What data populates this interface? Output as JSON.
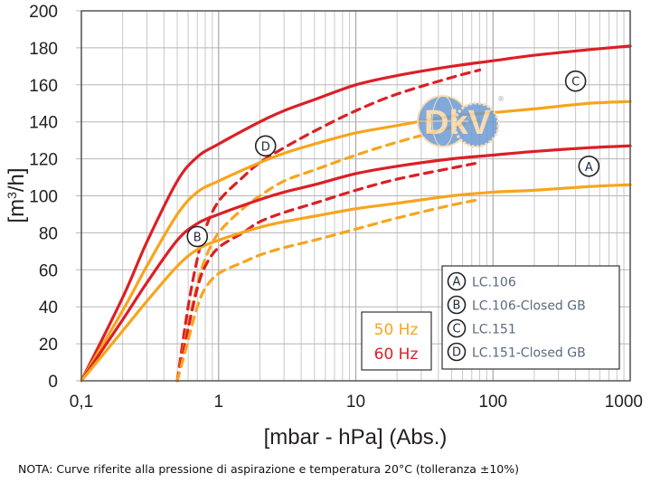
{
  "chart_data": {
    "type": "line",
    "title": "",
    "xlabel": "[mbar - hPa] (Abs.)",
    "ylabel": "[m3/h]",
    "ylabel_sup": "3",
    "xscale": "log",
    "xlim": [
      0.1,
      1000
    ],
    "ylim": [
      0,
      200
    ],
    "grid": true,
    "x_ticks": [
      0.1,
      1,
      10,
      100,
      1000
    ],
    "x_tick_labels": [
      "0,1",
      "1",
      "10",
      "100",
      "1000"
    ],
    "y_ticks": [
      0,
      20,
      40,
      60,
      80,
      100,
      120,
      140,
      160,
      180,
      200
    ],
    "y_tick_labels": [
      "0",
      "20",
      "40",
      "60",
      "80",
      "100",
      "120",
      "140",
      "160",
      "180",
      "200"
    ],
    "colors": {
      "50Hz": "#f7a51c",
      "60Hz": "#dc1f26"
    },
    "frequency_legend": [
      {
        "label": "50 Hz",
        "color": "#f7a51c"
      },
      {
        "label": "60 Hz",
        "color": "#dc1f26"
      }
    ],
    "model_legend": [
      {
        "letter": "A",
        "label": "LC.106"
      },
      {
        "letter": "B",
        "label": "LC.106-Closed GB"
      },
      {
        "letter": "C",
        "label": "LC.151"
      },
      {
        "letter": "D",
        "label": "LC.151-Closed GB"
      }
    ],
    "curve_labels": [
      {
        "letter": "A",
        "x": 500,
        "y": 116
      },
      {
        "letter": "B",
        "x": 0.7,
        "y": 78
      },
      {
        "letter": "C",
        "x": 400,
        "y": 162
      },
      {
        "letter": "D",
        "x": 2.2,
        "y": 127
      }
    ],
    "series": [
      {
        "name": "LC.151 60 Hz",
        "model": "C",
        "freq": "60 Hz",
        "style": "solid",
        "x": [
          0.1,
          0.2,
          0.3,
          0.5,
          0.7,
          1,
          2,
          3,
          5,
          10,
          20,
          50,
          100,
          200,
          500,
          1000
        ],
        "y": [
          0,
          45,
          75,
          108,
          121,
          128,
          140,
          146,
          152,
          160,
          165,
          170,
          173,
          176,
          179,
          181
        ]
      },
      {
        "name": "LC.151 50 Hz",
        "model": "C",
        "freq": "50 Hz",
        "style": "solid",
        "x": [
          0.1,
          0.2,
          0.3,
          0.5,
          0.7,
          1,
          2,
          3,
          5,
          10,
          20,
          50,
          100,
          200,
          500,
          1000
        ],
        "y": [
          0,
          38,
          62,
          90,
          102,
          108,
          118,
          123,
          128,
          134,
          138,
          143,
          145,
          147,
          150,
          151
        ]
      },
      {
        "name": "LC.106 60 Hz",
        "model": "A",
        "freq": "60 Hz",
        "style": "solid",
        "x": [
          0.1,
          0.2,
          0.3,
          0.5,
          0.7,
          1,
          2,
          3,
          5,
          10,
          20,
          50,
          100,
          200,
          500,
          1000
        ],
        "y": [
          0,
          33,
          53,
          76,
          85,
          90,
          98,
          102,
          106,
          112,
          116,
          120,
          122,
          124,
          126,
          127
        ]
      },
      {
        "name": "LC.106 50 Hz",
        "model": "A",
        "freq": "50 Hz",
        "style": "solid",
        "x": [
          0.1,
          0.2,
          0.3,
          0.5,
          0.7,
          1,
          2,
          3,
          5,
          10,
          20,
          50,
          100,
          200,
          500,
          1000
        ],
        "y": [
          0,
          27,
          43,
          62,
          71,
          76,
          83,
          86,
          89,
          93,
          96,
          100,
          102,
          103,
          105,
          106
        ]
      },
      {
        "name": "LC.151-Closed GB 60 Hz",
        "model": "D",
        "freq": "60 Hz",
        "style": "dashed",
        "x": [
          0.5,
          0.6,
          0.7,
          0.8,
          1,
          1.5,
          2,
          3,
          5,
          10,
          20,
          50,
          80
        ],
        "y": [
          0,
          40,
          66,
          82,
          97,
          110,
          118,
          126,
          135,
          146,
          155,
          164,
          168
        ]
      },
      {
        "name": "LC.151-Closed GB 50 Hz",
        "model": "D",
        "freq": "50 Hz",
        "style": "dashed",
        "x": [
          0.5,
          0.6,
          0.7,
          0.8,
          1,
          1.5,
          2,
          3,
          5,
          10,
          20,
          50,
          80
        ],
        "y": [
          0,
          30,
          52,
          66,
          80,
          93,
          100,
          108,
          114,
          122,
          129,
          137,
          141
        ]
      },
      {
        "name": "LC.106-Closed GB 60 Hz",
        "model": "B",
        "freq": "60 Hz",
        "style": "dashed",
        "x": [
          0.5,
          0.6,
          0.7,
          0.8,
          1,
          1.5,
          2,
          3,
          5,
          10,
          20,
          50,
          80
        ],
        "y": [
          0,
          28,
          50,
          62,
          72,
          80,
          86,
          91,
          96,
          103,
          109,
          115,
          118
        ]
      },
      {
        "name": "LC.106-Closed GB 50 Hz",
        "model": "B",
        "freq": "50 Hz",
        "style": "dashed",
        "x": [
          0.5,
          0.6,
          0.7,
          0.8,
          1,
          1.5,
          2,
          3,
          5,
          10,
          20,
          50,
          80
        ],
        "y": [
          0,
          22,
          40,
          50,
          58,
          64,
          68,
          72,
          76,
          82,
          88,
          95,
          98
        ]
      }
    ]
  },
  "watermark": {
    "text": "DkV",
    "registered": "®"
  },
  "note": "NOTA:  Curve riferite alla pressione di aspirazione e temperatura 20°C (tolleranza ±10%)"
}
